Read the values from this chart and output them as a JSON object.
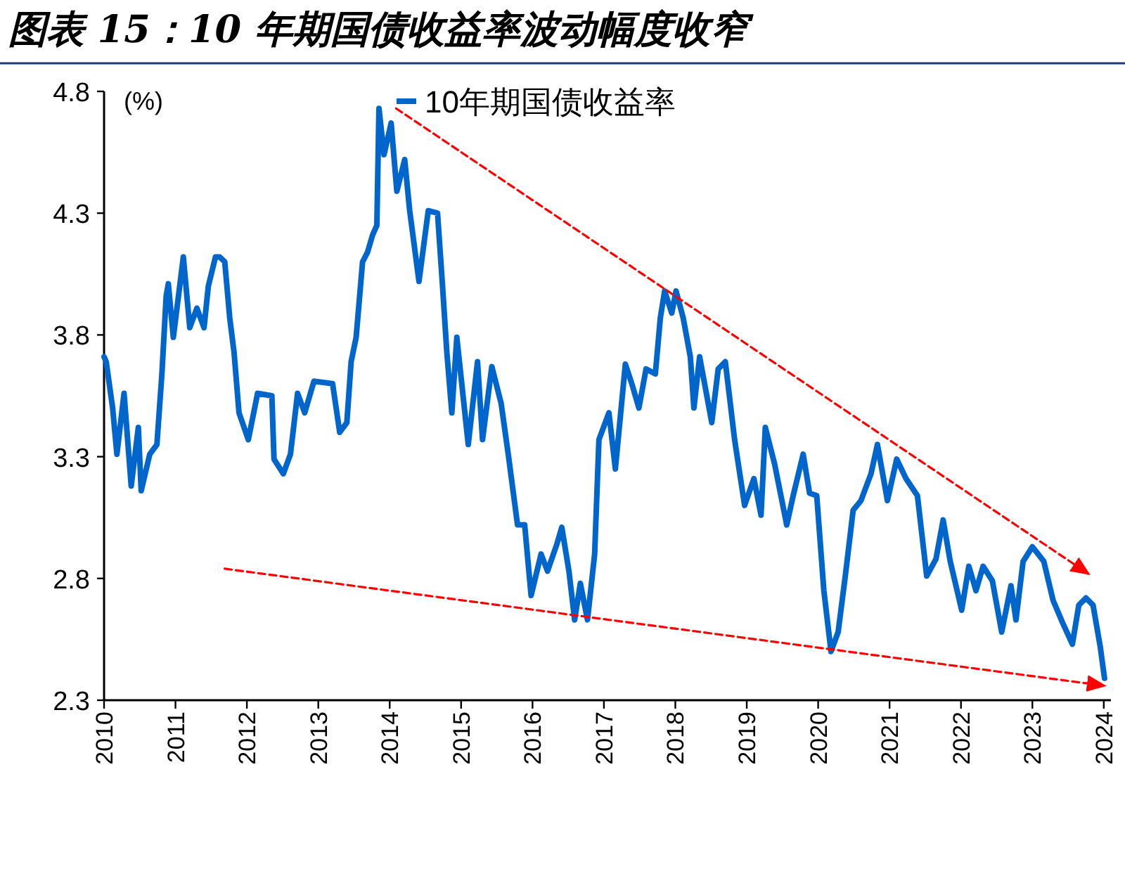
{
  "chart_data": {
    "type": "line",
    "title": "图表 15：10 年期国债收益率波动幅度收窄",
    "ylabel": "(%)",
    "xlim": [
      2010,
      2024.1
    ],
    "xticks": [
      2010,
      2011,
      2012,
      2013,
      2014,
      2015,
      2016,
      2017,
      2018,
      2019,
      2020,
      2021,
      2022,
      2023,
      2024
    ],
    "ylim": [
      2.3,
      4.8
    ],
    "yticks": [
      2.3,
      2.8,
      3.3,
      3.8,
      4.3,
      4.8
    ],
    "legend": "top",
    "series": [
      {
        "name": "10年期国债收益率",
        "color": "#0066cc",
        "line_style": "solid",
        "x": [
          2010.0,
          2010.03,
          2010.12,
          2010.18,
          2010.28,
          2010.38,
          2010.48,
          2010.52,
          2010.64,
          2010.74,
          2010.81,
          2010.87,
          2010.9,
          2010.97,
          2011.11,
          2011.2,
          2011.3,
          2011.4,
          2011.46,
          2011.56,
          2011.62,
          2011.69,
          2011.76,
          2011.82,
          2011.89,
          2012.02,
          2012.15,
          2012.35,
          2012.38,
          2012.51,
          2012.61,
          2012.71,
          2012.81,
          2012.94,
          2013.2,
          2013.3,
          2013.4,
          2013.46,
          2013.53,
          2013.62,
          2013.69,
          2013.76,
          2013.82,
          2013.85,
          2013.92,
          2014.02,
          2014.1,
          2014.21,
          2014.28,
          2014.41,
          2014.54,
          2014.67,
          2014.74,
          2014.8,
          2014.87,
          2014.94,
          2015.1,
          2015.23,
          2015.3,
          2015.43,
          2015.56,
          2015.66,
          2015.79,
          2015.89,
          2015.98,
          2016.12,
          2016.21,
          2016.34,
          2016.41,
          2016.51,
          2016.59,
          2016.67,
          2016.77,
          2016.87,
          2016.93,
          2017.07,
          2017.16,
          2017.3,
          2017.39,
          2017.49,
          2017.59,
          2017.72,
          2017.79,
          2017.85,
          2017.95,
          2018.01,
          2018.11,
          2018.21,
          2018.26,
          2018.34,
          2018.51,
          2018.6,
          2018.7,
          2018.83,
          2018.97,
          2019.1,
          2019.2,
          2019.26,
          2019.39,
          2019.56,
          2019.65,
          2019.79,
          2019.88,
          2019.98,
          2020.08,
          2020.18,
          2020.28,
          2020.38,
          2020.49,
          2020.6,
          2020.74,
          2020.83,
          2020.97,
          2021.1,
          2021.23,
          2021.39,
          2021.52,
          2021.65,
          2021.75,
          2021.85,
          2022.01,
          2022.11,
          2022.21,
          2022.31,
          2022.44,
          2022.57,
          2022.7,
          2022.77,
          2022.87,
          2023.0,
          2023.16,
          2023.29,
          2023.42,
          2023.56,
          2023.65,
          2023.75,
          2023.85,
          2023.95,
          2024.01
        ],
        "values": [
          3.71,
          3.69,
          3.5,
          3.31,
          3.56,
          3.18,
          3.42,
          3.16,
          3.31,
          3.35,
          3.64,
          3.96,
          4.01,
          3.79,
          4.12,
          3.83,
          3.91,
          3.83,
          4.0,
          4.12,
          4.12,
          4.1,
          3.87,
          3.73,
          3.48,
          3.37,
          3.56,
          3.55,
          3.29,
          3.23,
          3.31,
          3.56,
          3.48,
          3.61,
          3.6,
          3.4,
          3.44,
          3.69,
          3.79,
          4.1,
          4.14,
          4.21,
          4.25,
          4.73,
          4.54,
          4.67,
          4.39,
          4.52,
          4.31,
          4.02,
          4.31,
          4.3,
          4.0,
          3.73,
          3.48,
          3.79,
          3.35,
          3.69,
          3.37,
          3.67,
          3.52,
          3.31,
          3.02,
          3.02,
          2.73,
          2.9,
          2.83,
          2.94,
          3.01,
          2.83,
          2.63,
          2.78,
          2.63,
          2.9,
          3.37,
          3.48,
          3.25,
          3.68,
          3.6,
          3.5,
          3.66,
          3.64,
          3.87,
          3.98,
          3.89,
          3.98,
          3.87,
          3.71,
          3.5,
          3.71,
          3.44,
          3.66,
          3.69,
          3.37,
          3.1,
          3.21,
          3.06,
          3.42,
          3.27,
          3.02,
          3.14,
          3.31,
          3.15,
          3.14,
          2.75,
          2.5,
          2.58,
          2.81,
          3.08,
          3.12,
          3.23,
          3.35,
          3.12,
          3.29,
          3.21,
          3.14,
          2.81,
          2.88,
          3.04,
          2.87,
          2.67,
          2.85,
          2.75,
          2.85,
          2.79,
          2.58,
          2.77,
          2.63,
          2.87,
          2.93,
          2.87,
          2.71,
          2.62,
          2.53,
          2.69,
          2.72,
          2.69,
          2.52,
          2.39
        ]
      },
      {
        "color": "#ff0000",
        "line_style": "dashed",
        "x": [
          2014.09,
          2023.78
        ],
        "values": [
          4.73,
          2.82
        ]
      },
      {
        "color": "#ff0000",
        "line_style": "dashed",
        "x": [
          2011.69,
          2024.0
        ],
        "values": [
          2.84,
          2.36
        ]
      }
    ]
  }
}
